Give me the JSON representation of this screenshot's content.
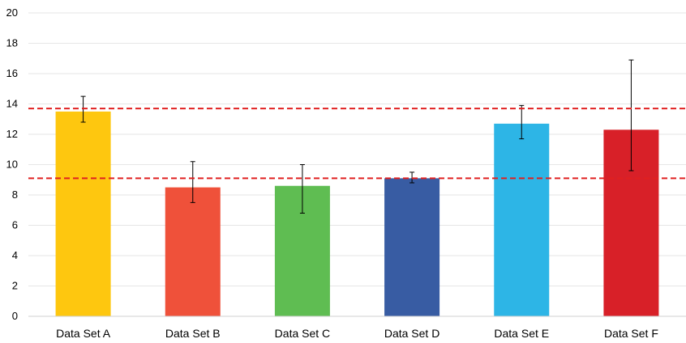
{
  "chart_data": {
    "type": "bar",
    "title": "",
    "xlabel": "",
    "ylabel": "",
    "ylim": [
      0,
      20
    ],
    "yticks": [
      0,
      2,
      4,
      6,
      8,
      10,
      12,
      14,
      16,
      18,
      20
    ],
    "grid": true,
    "legend": "none",
    "categories": [
      "Data Set A",
      "Data Set B",
      "Data Set C",
      "Data Set D",
      "Data Set E",
      "Data Set F"
    ],
    "values": [
      13.5,
      8.5,
      8.6,
      9.1,
      12.7,
      12.3
    ],
    "error_bars": [
      {
        "low": 12.8,
        "high": 14.5
      },
      {
        "low": 7.5,
        "high": 10.2
      },
      {
        "low": 6.8,
        "high": 10.0
      },
      {
        "low": 8.8,
        "high": 9.5
      },
      {
        "low": 11.7,
        "high": 13.9
      },
      {
        "low": 9.6,
        "high": 16.9
      }
    ],
    "colors": [
      "#fec70f",
      "#ef513a",
      "#5fbd52",
      "#385ca3",
      "#2db5e6",
      "#d82028"
    ],
    "reference_lines": [
      {
        "value": 13.7,
        "color": "#e02020",
        "style": "dashed"
      },
      {
        "value": 9.1,
        "color": "#e02020",
        "style": "dashed"
      }
    ]
  }
}
